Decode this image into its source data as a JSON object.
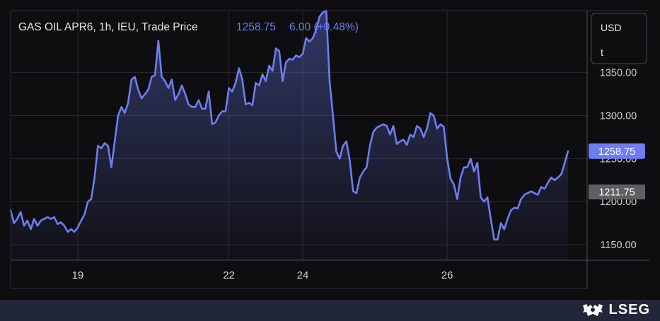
{
  "header": {
    "symbol_text": "GAS OIL APR6, 1h, IEU, Trade Price",
    "price_text": "1258.75",
    "change_text": "6.00 (+0.48%)"
  },
  "unit_box": {
    "currency": "USD",
    "unit": "t"
  },
  "colors": {
    "line": "#6e7df2",
    "last_price_tag": "#6e7df2",
    "prev_close_tag": "#5f5f63",
    "background": "#0e0e10",
    "grid": "#2a2a2e",
    "footer": "#212638"
  },
  "brand": {
    "name": "LSEG",
    "logo_icon": "lseg-crest-icon"
  },
  "chart_data": {
    "type": "area",
    "title": "GAS OIL APR6, 1h, IEU, Trade Price",
    "y_ticks": [
      1150,
      1200,
      1250,
      1300,
      1350
    ],
    "y_tick_labels": [
      "1150.00",
      "1200.00",
      "1250.00",
      "1300.00",
      "1350.00"
    ],
    "x_ticks": [
      {
        "label": "19",
        "index": 20
      },
      {
        "label": "22",
        "index": 65
      },
      {
        "label": "24",
        "index": 87
      },
      {
        "label": "26",
        "index": 130
      }
    ],
    "ylim": [
      1132,
      1422
    ],
    "last_price": 1258.75,
    "last_price_label": "1258.75",
    "prev_close": 1211.75,
    "prev_close_label": "1211.75",
    "grid": true,
    "values": [
      1190,
      1175,
      1180,
      1188,
      1172,
      1178,
      1168,
      1180,
      1172,
      1178,
      1180,
      1182,
      1180,
      1182,
      1174,
      1176,
      1172,
      1165,
      1168,
      1165,
      1170,
      1178,
      1185,
      1200,
      1203,
      1228,
      1265,
      1262,
      1268,
      1265,
      1240,
      1270,
      1300,
      1310,
      1303,
      1315,
      1342,
      1345,
      1330,
      1320,
      1325,
      1330,
      1345,
      1347,
      1387,
      1345,
      1340,
      1332,
      1342,
      1318,
      1325,
      1335,
      1325,
      1313,
      1310,
      1310,
      1318,
      1308,
      1308,
      1328,
      1290,
      1292,
      1300,
      1305,
      1305,
      1332,
      1328,
      1338,
      1355,
      1342,
      1313,
      1315,
      1312,
      1338,
      1335,
      1348,
      1340,
      1358,
      1352,
      1378,
      1375,
      1340,
      1362,
      1366,
      1365,
      1370,
      1368,
      1372,
      1390,
      1386,
      1390,
      1400,
      1415,
      1420,
      1422,
      1340,
      1300,
      1258,
      1250,
      1265,
      1270,
      1248,
      1212,
      1210,
      1228,
      1235,
      1240,
      1265,
      1281,
      1286,
      1288,
      1290,
      1288,
      1278,
      1288,
      1267,
      1270,
      1272,
      1266,
      1278,
      1275,
      1288,
      1285,
      1275,
      1285,
      1303,
      1300,
      1285,
      1290,
      1287,
      1250,
      1227,
      1220,
      1203,
      1228,
      1240,
      1240,
      1250,
      1235,
      1245,
      1205,
      1200,
      1205,
      1180,
      1156,
      1156,
      1175,
      1168,
      1180,
      1190,
      1193,
      1192,
      1203,
      1208,
      1210,
      1212,
      1210,
      1208,
      1217,
      1215,
      1222,
      1228,
      1225,
      1228,
      1232,
      1245,
      1258.75
    ]
  }
}
